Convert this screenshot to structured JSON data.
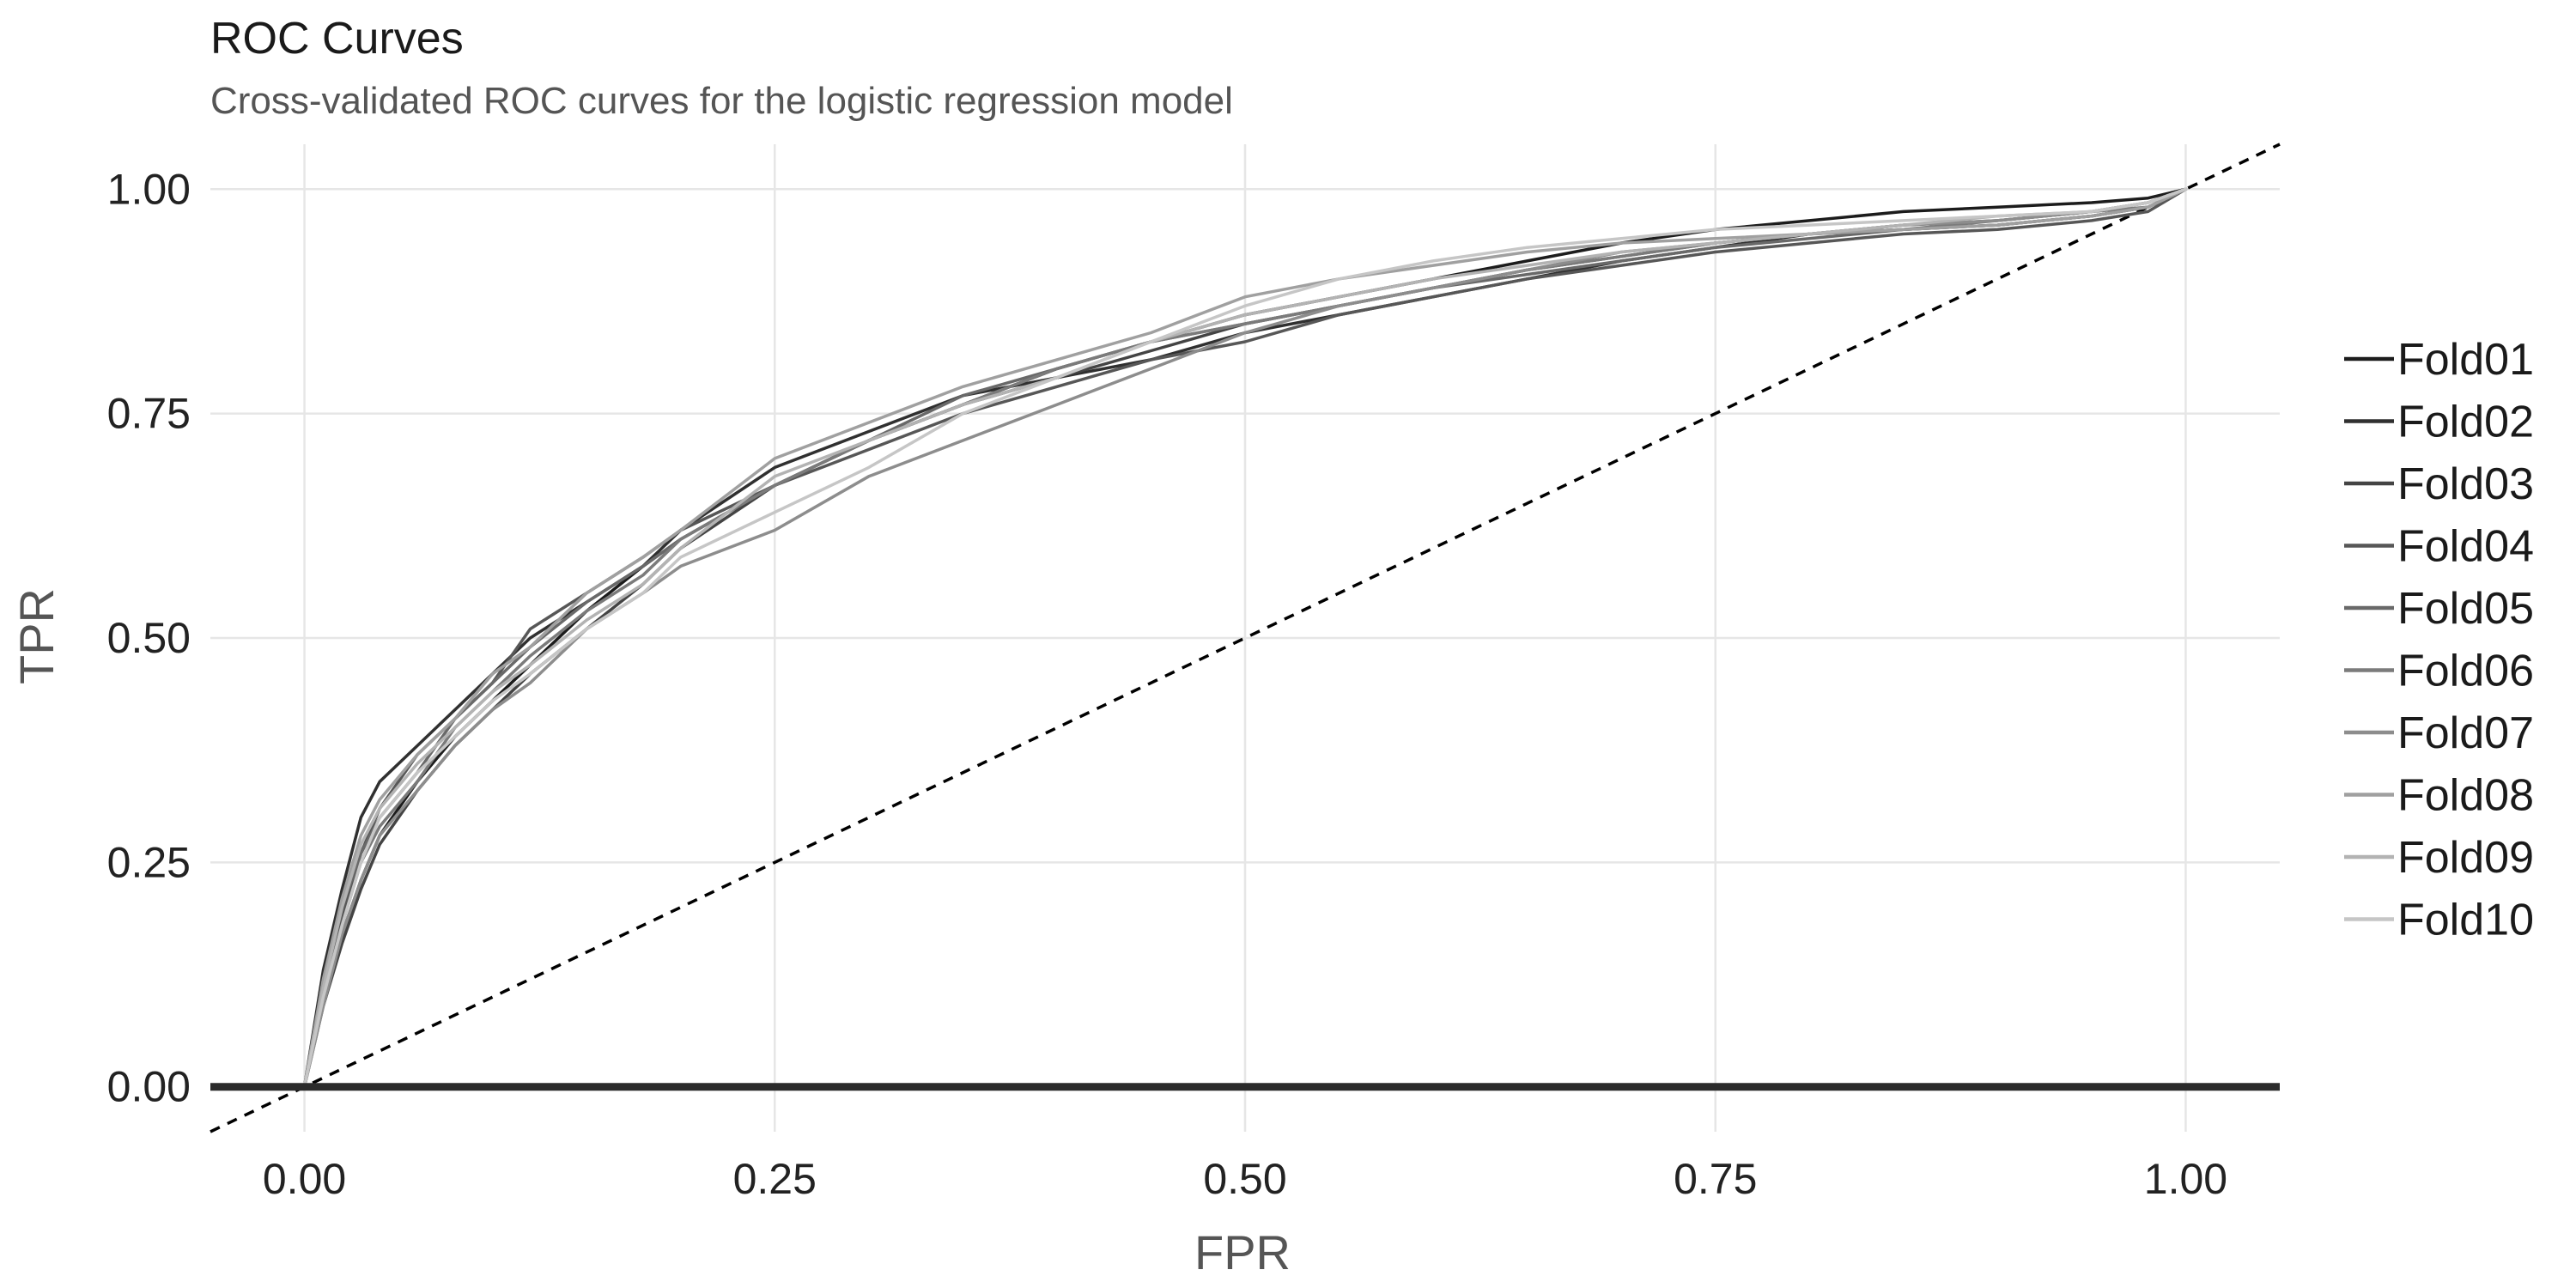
{
  "chart_data": {
    "type": "line",
    "title": "ROC Curves",
    "subtitle": "Cross-validated ROC curves for the logistic regression model",
    "xlabel": "FPR",
    "ylabel": "TPR",
    "xlim": [
      -0.05,
      1.05
    ],
    "ylim": [
      -0.05,
      1.05
    ],
    "x_ticks": [
      0,
      0.25,
      0.5,
      0.75,
      1
    ],
    "x_tick_labels": [
      "0.00",
      "0.25",
      "0.50",
      "0.75",
      "1.00"
    ],
    "y_ticks": [
      0,
      0.25,
      0.5,
      0.75,
      1
    ],
    "y_tick_labels": [
      "0.00",
      "0.25",
      "0.50",
      "0.75",
      "1.00"
    ],
    "grid": true,
    "legend_position": "right",
    "reference_line": {
      "style": "dashed",
      "x": [
        -0.05,
        1.05
      ],
      "y": [
        -0.05,
        1.05
      ],
      "color": "#000000"
    },
    "baseline": {
      "y": 0,
      "color": "#2b2b2b"
    },
    "series": [
      {
        "name": "Fold01",
        "color": "#1c1c1c",
        "x": [
          0,
          0.01,
          0.02,
          0.03,
          0.04,
          0.06,
          0.08,
          0.1,
          0.12,
          0.15,
          0.18,
          0.2,
          0.25,
          0.3,
          0.35,
          0.4,
          0.45,
          0.5,
          0.55,
          0.6,
          0.65,
          0.7,
          0.75,
          0.8,
          0.85,
          0.9,
          0.95,
          0.98,
          1
        ],
        "y": [
          0,
          0.1,
          0.17,
          0.23,
          0.28,
          0.34,
          0.39,
          0.43,
          0.47,
          0.53,
          0.58,
          0.61,
          0.67,
          0.72,
          0.76,
          0.8,
          0.83,
          0.86,
          0.88,
          0.9,
          0.92,
          0.94,
          0.955,
          0.965,
          0.975,
          0.98,
          0.985,
          0.99,
          1
        ]
      },
      {
        "name": "Fold02",
        "color": "#303030",
        "x": [
          0,
          0.01,
          0.02,
          0.03,
          0.04,
          0.06,
          0.08,
          0.1,
          0.12,
          0.15,
          0.18,
          0.2,
          0.25,
          0.3,
          0.35,
          0.4,
          0.45,
          0.5,
          0.55,
          0.6,
          0.65,
          0.7,
          0.75,
          0.8,
          0.85,
          0.9,
          0.95,
          0.98,
          1
        ],
        "y": [
          0,
          0.13,
          0.22,
          0.3,
          0.34,
          0.38,
          0.42,
          0.46,
          0.5,
          0.54,
          0.58,
          0.62,
          0.69,
          0.73,
          0.77,
          0.79,
          0.81,
          0.84,
          0.86,
          0.88,
          0.9,
          0.92,
          0.935,
          0.95,
          0.955,
          0.96,
          0.97,
          0.98,
          1
        ]
      },
      {
        "name": "Fold03",
        "color": "#444444",
        "x": [
          0,
          0.01,
          0.02,
          0.03,
          0.04,
          0.06,
          0.08,
          0.1,
          0.12,
          0.15,
          0.18,
          0.2,
          0.25,
          0.3,
          0.35,
          0.4,
          0.45,
          0.5,
          0.55,
          0.6,
          0.65,
          0.7,
          0.75,
          0.8,
          0.85,
          0.9,
          0.95,
          0.98,
          1
        ],
        "y": [
          0,
          0.09,
          0.16,
          0.22,
          0.27,
          0.33,
          0.38,
          0.42,
          0.46,
          0.51,
          0.56,
          0.6,
          0.67,
          0.72,
          0.76,
          0.79,
          0.82,
          0.85,
          0.87,
          0.89,
          0.91,
          0.925,
          0.94,
          0.95,
          0.96,
          0.965,
          0.975,
          0.985,
          1
        ]
      },
      {
        "name": "Fold04",
        "color": "#575757",
        "x": [
          0,
          0.01,
          0.02,
          0.03,
          0.04,
          0.06,
          0.08,
          0.1,
          0.12,
          0.15,
          0.18,
          0.2,
          0.25,
          0.3,
          0.35,
          0.4,
          0.45,
          0.5,
          0.55,
          0.6,
          0.65,
          0.7,
          0.75,
          0.8,
          0.85,
          0.9,
          0.95,
          0.98,
          1
        ],
        "y": [
          0,
          0.11,
          0.19,
          0.26,
          0.31,
          0.37,
          0.41,
          0.45,
          0.51,
          0.55,
          0.59,
          0.62,
          0.67,
          0.71,
          0.75,
          0.78,
          0.81,
          0.83,
          0.86,
          0.88,
          0.9,
          0.915,
          0.93,
          0.94,
          0.95,
          0.955,
          0.965,
          0.975,
          1
        ]
      },
      {
        "name": "Fold05",
        "color": "#696969",
        "x": [
          0,
          0.01,
          0.02,
          0.03,
          0.04,
          0.06,
          0.08,
          0.1,
          0.12,
          0.15,
          0.18,
          0.2,
          0.25,
          0.3,
          0.35,
          0.4,
          0.45,
          0.5,
          0.55,
          0.6,
          0.65,
          0.7,
          0.75,
          0.8,
          0.85,
          0.9,
          0.95,
          0.98,
          1
        ],
        "y": [
          0,
          0.12,
          0.2,
          0.26,
          0.3,
          0.35,
          0.41,
          0.45,
          0.49,
          0.54,
          0.58,
          0.61,
          0.67,
          0.72,
          0.77,
          0.8,
          0.83,
          0.85,
          0.87,
          0.89,
          0.905,
          0.92,
          0.935,
          0.945,
          0.955,
          0.96,
          0.97,
          0.98,
          1
        ]
      },
      {
        "name": "Fold06",
        "color": "#7b7b7b",
        "x": [
          0,
          0.01,
          0.02,
          0.03,
          0.04,
          0.06,
          0.08,
          0.1,
          0.12,
          0.15,
          0.18,
          0.2,
          0.25,
          0.3,
          0.35,
          0.4,
          0.45,
          0.5,
          0.55,
          0.6,
          0.65,
          0.7,
          0.75,
          0.8,
          0.85,
          0.9,
          0.95,
          0.98,
          1
        ],
        "y": [
          0,
          0.1,
          0.18,
          0.25,
          0.29,
          0.34,
          0.4,
          0.44,
          0.48,
          0.53,
          0.57,
          0.61,
          0.67,
          0.72,
          0.76,
          0.8,
          0.83,
          0.85,
          0.87,
          0.89,
          0.91,
          0.925,
          0.94,
          0.95,
          0.955,
          0.965,
          0.975,
          0.98,
          1
        ]
      },
      {
        "name": "Fold07",
        "color": "#8d8d8d",
        "x": [
          0,
          0.01,
          0.02,
          0.03,
          0.04,
          0.06,
          0.08,
          0.1,
          0.12,
          0.15,
          0.18,
          0.2,
          0.25,
          0.3,
          0.35,
          0.4,
          0.45,
          0.5,
          0.55,
          0.6,
          0.65,
          0.7,
          0.75,
          0.8,
          0.85,
          0.9,
          0.95,
          0.98,
          1
        ],
        "y": [
          0,
          0.09,
          0.17,
          0.23,
          0.28,
          0.33,
          0.38,
          0.42,
          0.45,
          0.51,
          0.55,
          0.58,
          0.62,
          0.68,
          0.72,
          0.76,
          0.8,
          0.84,
          0.87,
          0.89,
          0.91,
          0.93,
          0.94,
          0.95,
          0.96,
          0.965,
          0.975,
          0.985,
          1
        ]
      },
      {
        "name": "Fold08",
        "color": "#a0a0a0",
        "x": [
          0,
          0.01,
          0.02,
          0.03,
          0.04,
          0.06,
          0.08,
          0.1,
          0.12,
          0.15,
          0.18,
          0.2,
          0.25,
          0.3,
          0.35,
          0.4,
          0.45,
          0.5,
          0.55,
          0.6,
          0.65,
          0.7,
          0.75,
          0.8,
          0.85,
          0.9,
          0.95,
          0.98,
          1
        ],
        "y": [
          0,
          0.12,
          0.21,
          0.28,
          0.32,
          0.37,
          0.41,
          0.46,
          0.49,
          0.55,
          0.59,
          0.62,
          0.7,
          0.74,
          0.78,
          0.81,
          0.84,
          0.88,
          0.9,
          0.915,
          0.93,
          0.94,
          0.945,
          0.95,
          0.955,
          0.96,
          0.97,
          0.98,
          1
        ]
      },
      {
        "name": "Fold09",
        "color": "#b3b3b3",
        "x": [
          0,
          0.01,
          0.02,
          0.03,
          0.04,
          0.06,
          0.08,
          0.1,
          0.12,
          0.15,
          0.18,
          0.2,
          0.25,
          0.3,
          0.35,
          0.4,
          0.45,
          0.5,
          0.55,
          0.6,
          0.65,
          0.7,
          0.75,
          0.8,
          0.85,
          0.9,
          0.95,
          0.98,
          1
        ],
        "y": [
          0,
          0.11,
          0.2,
          0.27,
          0.31,
          0.36,
          0.4,
          0.44,
          0.47,
          0.52,
          0.56,
          0.6,
          0.68,
          0.72,
          0.76,
          0.79,
          0.83,
          0.86,
          0.88,
          0.9,
          0.915,
          0.93,
          0.94,
          0.95,
          0.96,
          0.97,
          0.975,
          0.985,
          1
        ]
      },
      {
        "name": "Fold10",
        "color": "#c6c6c6",
        "x": [
          0,
          0.01,
          0.02,
          0.03,
          0.04,
          0.06,
          0.08,
          0.1,
          0.12,
          0.15,
          0.18,
          0.2,
          0.25,
          0.3,
          0.35,
          0.4,
          0.45,
          0.5,
          0.55,
          0.6,
          0.65,
          0.7,
          0.75,
          0.8,
          0.85,
          0.9,
          0.95,
          0.98,
          1
        ],
        "y": [
          0,
          0.1,
          0.18,
          0.25,
          0.3,
          0.35,
          0.39,
          0.43,
          0.46,
          0.51,
          0.55,
          0.59,
          0.64,
          0.69,
          0.75,
          0.79,
          0.83,
          0.87,
          0.9,
          0.92,
          0.935,
          0.945,
          0.955,
          0.96,
          0.965,
          0.97,
          0.975,
          0.985,
          1
        ]
      }
    ]
  }
}
